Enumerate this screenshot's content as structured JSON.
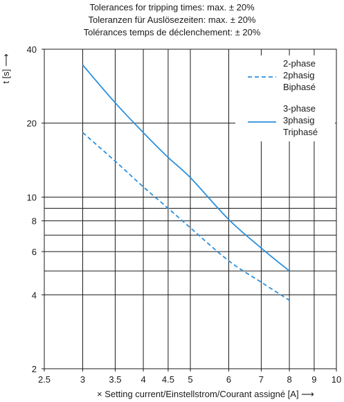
{
  "tolerances": [
    "Tolerances for tripping times: max. ± 20%",
    "Toleranzen für Auslösezeiten: max. ± 20%",
    "Tolérances temps de déclenchement: ± 20%"
  ],
  "chart_data": {
    "type": "line",
    "xlabel": "× Setting current/Einstellstrom/Courant assigné [A]",
    "ylabel": "t [s]",
    "x_scale": "log",
    "y_scale": "log",
    "xlim": [
      2.5,
      10
    ],
    "ylim": [
      2,
      40
    ],
    "grid": true,
    "x_ticks": [
      2.5,
      3,
      3.5,
      4,
      4.5,
      5,
      6,
      7,
      8,
      9,
      10
    ],
    "x_tick_labels": [
      "2.5",
      "3",
      "3.5",
      "4",
      "4.5",
      "5",
      "6",
      "7",
      "8",
      "9",
      "10"
    ],
    "y_ticks": [
      2,
      4,
      6,
      8,
      10,
      20,
      40
    ],
    "y_tick_labels": [
      "2",
      "4",
      "6",
      "8",
      "10",
      "20",
      "40"
    ],
    "y_extra_gridlines": [
      5,
      7,
      9
    ],
    "legend_position": "top-right",
    "series": [
      {
        "name": "2-phase\n2phasig\nBiphasé",
        "legend_lines": [
          "2-phase",
          "2phasig",
          "Biphasé"
        ],
        "style": "dashed",
        "color": "#2b8fdc",
        "x": [
          3,
          3.5,
          4,
          4.5,
          5,
          6,
          7,
          8
        ],
        "y": [
          18.3,
          14.0,
          11.0,
          9.0,
          7.5,
          5.5,
          4.5,
          3.8
        ]
      },
      {
        "name": "3-phase\n3phasig\nTriphasé",
        "legend_lines": [
          "3-phase",
          "3phasig",
          "Triphasé"
        ],
        "style": "solid",
        "color": "#2b8fdc",
        "x": [
          3,
          3.5,
          4,
          4.5,
          5,
          6,
          7,
          8
        ],
        "y": [
          34.5,
          24.2,
          18.3,
          14.5,
          12.0,
          8.1,
          6.2,
          5.0
        ]
      }
    ]
  }
}
